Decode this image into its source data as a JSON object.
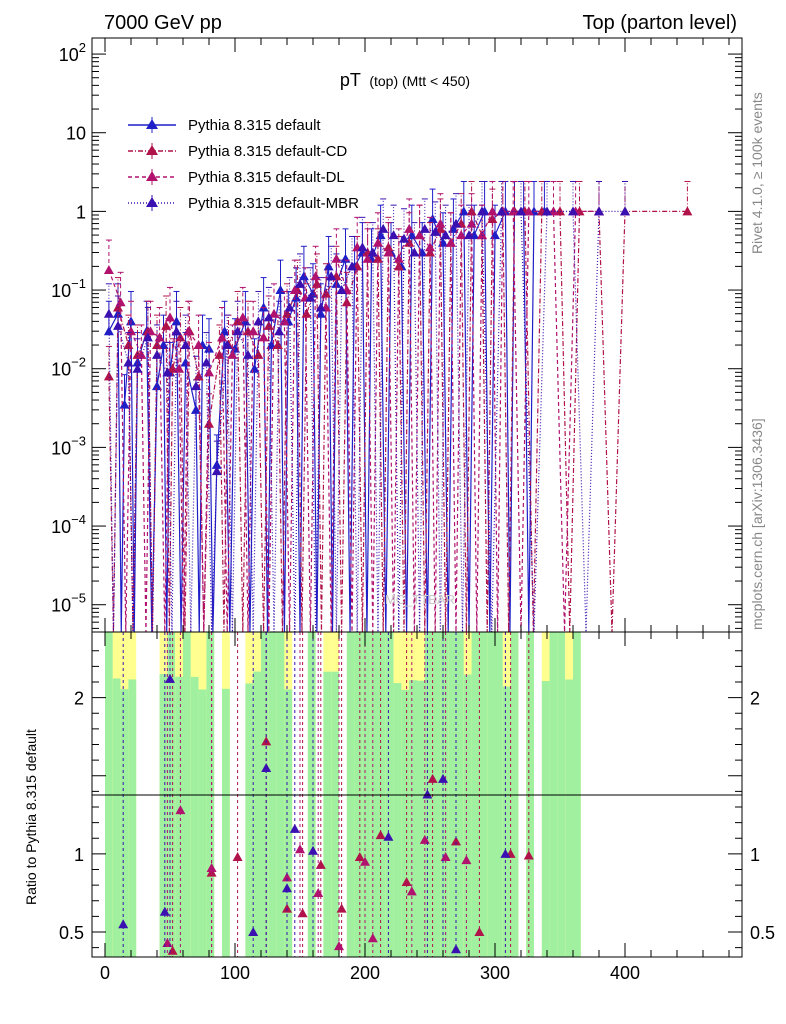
{
  "header": {
    "left": "7000 GeV pp",
    "right": "Top (parton level)"
  },
  "side_labels": {
    "rivet": "Rivet 4.1.0, ≥ 100k events",
    "mcplots": "mcplots.cern.ch [arXiv:1306.3436]"
  },
  "chart_data": {
    "type": "line",
    "title_main": "pT",
    "title_sub": "(top) (Mtt < 450)",
    "watermark": "MC_TTBAR",
    "xlabel": "",
    "ylabel_top": "",
    "ylabel_ratio": "Ratio to Pythia 8.315 default",
    "xlim": [
      -10,
      490
    ],
    "ylim_log": [
      4.5e-06,
      160
    ],
    "ylim_ratio": [
      0.34,
      2.42
    ],
    "x_ticks": [
      "0",
      "100",
      "200",
      "300",
      "400"
    ],
    "x_tick_values": [
      0,
      100,
      200,
      300,
      400
    ],
    "y_ticks_top": [
      {
        "value": 100,
        "base": "10",
        "exp": "2"
      },
      {
        "value": 10,
        "base": "10",
        "exp": ""
      },
      {
        "value": 1,
        "base": "1",
        "exp": ""
      },
      {
        "value": 0.1,
        "base": "10",
        "exp": "−1"
      },
      {
        "value": 0.01,
        "base": "10",
        "exp": "−2"
      },
      {
        "value": 0.001,
        "base": "10",
        "exp": "−3"
      },
      {
        "value": 0.0001,
        "base": "10",
        "exp": "−4"
      },
      {
        "value": 1e-05,
        "base": "10",
        "exp": "−5"
      }
    ],
    "y_ticks_ratio": [
      {
        "value": 0.5,
        "label": "0.5"
      },
      {
        "value": 1,
        "label": "1"
      },
      {
        "value": 2,
        "label": "2"
      }
    ],
    "legend": [
      {
        "name": "Pythia 8.315 default",
        "color": "#1f1fc8",
        "dash": ""
      },
      {
        "name": "Pythia 8.315 default-CD",
        "color": "#b0124a",
        "dash": "5,2,1,2"
      },
      {
        "name": "Pythia 8.315 default-DL",
        "color": "#b0126e",
        "dash": "4,3"
      },
      {
        "name": "Pythia 8.315 default-MBR",
        "color": "#3a10b0",
        "dash": "1,2"
      }
    ],
    "series": [
      {
        "name": "Pythia 8.315 default",
        "color": "#1f1fc8",
        "points": [
          [
            3,
            0.03
          ],
          [
            10,
            0.05
          ],
          [
            15,
            0.0035
          ],
          [
            20,
            0.04
          ],
          [
            25,
            0.012
          ],
          [
            32,
            0.03
          ],
          [
            40,
            0.006
          ],
          [
            45,
            0.02
          ],
          [
            50,
            0.009
          ],
          [
            55,
            0.04
          ],
          [
            62,
            0.012
          ],
          [
            70,
            0.003
          ],
          [
            75,
            0.02
          ],
          [
            80,
            0.018
          ],
          [
            86,
            0.0006
          ],
          [
            92,
            0.03
          ],
          [
            100,
            0.018
          ],
          [
            108,
            0.04
          ],
          [
            115,
            0.01
          ],
          [
            122,
            0.06
          ],
          [
            128,
            0.02
          ],
          [
            135,
            0.1
          ],
          [
            141,
            0.04
          ],
          [
            147,
            0.08
          ],
          [
            153,
            0.15
          ],
          [
            160,
            0.09
          ],
          [
            166,
            0.05
          ],
          [
            172,
            0.2
          ],
          [
            178,
            0.12
          ],
          [
            185,
            0.25
          ],
          [
            192,
            0.2
          ],
          [
            198,
            0.3
          ],
          [
            205,
            0.25
          ],
          [
            212,
            0.5
          ],
          [
            220,
            0.3
          ],
          [
            228,
            0.2
          ],
          [
            236,
            0.5
          ],
          [
            244,
            0.3
          ],
          [
            252,
            0.8
          ],
          [
            260,
            0.4
          ],
          [
            268,
            0.6
          ],
          [
            276,
            1
          ],
          [
            284,
            0.5
          ],
          [
            292,
            1
          ],
          [
            300,
            0.5
          ],
          [
            308,
            1
          ],
          [
            315,
            1
          ],
          [
            322,
            1
          ],
          [
            330,
            1
          ],
          [
            338,
            1
          ]
        ]
      },
      {
        "name": "Pythia 8.315 default-CD",
        "color": "#b0124a",
        "points": [
          [
            3,
            0.008
          ],
          [
            10,
            0.06
          ],
          [
            18,
            0.02
          ],
          [
            25,
            0.015
          ],
          [
            33,
            0.03
          ],
          [
            40,
            0.02
          ],
          [
            47,
            0.035
          ],
          [
            52,
            0.01
          ],
          [
            58,
            0.025
          ],
          [
            65,
            0.03
          ],
          [
            72,
            0.008
          ],
          [
            80,
            0.002
          ],
          [
            88,
            0.015
          ],
          [
            95,
            0.02
          ],
          [
            102,
            0.04
          ],
          [
            110,
            0.03
          ],
          [
            118,
            0.015
          ],
          [
            126,
            0.035
          ],
          [
            133,
            0.02
          ],
          [
            140,
            0.05
          ],
          [
            148,
            0.1
          ],
          [
            155,
            0.05
          ],
          [
            163,
            0.12
          ],
          [
            170,
            0.09
          ],
          [
            178,
            0.15
          ],
          [
            186,
            0.07
          ],
          [
            194,
            0.2
          ],
          [
            202,
            0.3
          ],
          [
            210,
            0.25
          ],
          [
            218,
            0.35
          ],
          [
            226,
            0.2
          ],
          [
            234,
            0.4
          ],
          [
            242,
            0.5
          ],
          [
            250,
            0.3
          ],
          [
            258,
            0.6
          ],
          [
            266,
            0.4
          ],
          [
            274,
            0.7
          ],
          [
            282,
            1
          ],
          [
            290,
            0.5
          ],
          [
            298,
            0.8
          ],
          [
            306,
            1
          ],
          [
            315,
            1
          ],
          [
            323,
            1
          ],
          [
            336,
            1
          ],
          [
            350,
            1
          ],
          [
            365,
            1
          ],
          [
            380,
            1
          ],
          [
            400,
            1
          ],
          [
            448,
            1
          ]
        ]
      },
      {
        "name": "Pythia 8.315 default-DL",
        "color": "#b0126e",
        "points": [
          [
            3,
            0.18
          ],
          [
            12,
            0.07
          ],
          [
            20,
            0.03
          ],
          [
            28,
            0.015
          ],
          [
            35,
            0.03
          ],
          [
            42,
            0.025
          ],
          [
            50,
            0.045
          ],
          [
            57,
            0.01
          ],
          [
            64,
            0.03
          ],
          [
            72,
            0.02
          ],
          [
            80,
            0.009
          ],
          [
            90,
            0.025
          ],
          [
            98,
            0.015
          ],
          [
            106,
            0.045
          ],
          [
            114,
            0.03
          ],
          [
            122,
            0.025
          ],
          [
            130,
            0.05
          ],
          [
            138,
            0.04
          ],
          [
            146,
            0.1
          ],
          [
            154,
            0.08
          ],
          [
            162,
            0.15
          ],
          [
            170,
            0.06
          ],
          [
            178,
            0.25
          ],
          [
            186,
            0.1
          ],
          [
            194,
            0.35
          ],
          [
            202,
            0.25
          ],
          [
            210,
            0.4
          ],
          [
            218,
            0.3
          ],
          [
            226,
            0.25
          ],
          [
            234,
            0.6
          ],
          [
            242,
            0.5
          ],
          [
            250,
            0.35
          ],
          [
            258,
            0.7
          ],
          [
            266,
            0.4
          ],
          [
            274,
            0.5
          ],
          [
            282,
            0.7
          ],
          [
            290,
            0.5
          ],
          [
            298,
            1
          ],
          [
            306,
            1
          ],
          [
            314,
            1
          ],
          [
            326,
            1
          ],
          [
            345,
            1
          ],
          [
            362,
            1
          ],
          [
            380,
            1
          ]
        ]
      },
      {
        "name": "Pythia 8.315 default-MBR",
        "color": "#3a10b0",
        "points": [
          [
            3,
            0.05
          ],
          [
            10,
            0.035
          ],
          [
            18,
            0.012
          ],
          [
            25,
            0.01
          ],
          [
            33,
            0.025
          ],
          [
            40,
            0.015
          ],
          [
            48,
            0.009
          ],
          [
            55,
            0.03
          ],
          [
            62,
            0.02
          ],
          [
            70,
            0.006
          ],
          [
            78,
            0.012
          ],
          [
            86,
            0.0005
          ],
          [
            94,
            0.02
          ],
          [
            102,
            0.03
          ],
          [
            110,
            0.015
          ],
          [
            118,
            0.04
          ],
          [
            126,
            0.045
          ],
          [
            134,
            0.03
          ],
          [
            142,
            0.06
          ],
          [
            150,
            0.12
          ],
          [
            158,
            0.08
          ],
          [
            166,
            0.06
          ],
          [
            174,
            0.15
          ],
          [
            182,
            0.1
          ],
          [
            190,
            0.2
          ],
          [
            198,
            0.35
          ],
          [
            206,
            0.3
          ],
          [
            214,
            0.6
          ],
          [
            222,
            0.5
          ],
          [
            230,
            0.45
          ],
          [
            238,
            0.3
          ],
          [
            246,
            0.6
          ],
          [
            254,
            0.55
          ],
          [
            262,
            0.5
          ],
          [
            270,
            0.7
          ],
          [
            280,
            0.5
          ],
          [
            290,
            1
          ],
          [
            305,
            1
          ],
          [
            320,
            1
          ],
          [
            340,
            1
          ],
          [
            360,
            1
          ],
          [
            380,
            1
          ],
          [
            400,
            1
          ]
        ]
      }
    ],
    "ratio_series": [
      {
        "name": "Pythia 8.315 default-CD",
        "color": "#b0124a",
        "points": [
          [
            52,
            0.38
          ],
          [
            82,
            0.88
          ],
          [
            102,
            0.98
          ],
          [
            124,
            1.72
          ],
          [
            140,
            0.65
          ],
          [
            152,
            0.62
          ],
          [
            166,
            0.93
          ],
          [
            182,
            0.65
          ],
          [
            196,
            0.98
          ],
          [
            212,
            1.12
          ],
          [
            232,
            0.82
          ],
          [
            252,
            1.48
          ],
          [
            270,
            1.08
          ],
          [
            288,
            0.5
          ],
          [
            312,
            1.0
          ],
          [
            326,
            0.99
          ]
        ]
      },
      {
        "name": "Pythia 8.315 default-DL",
        "color": "#b0126e",
        "points": [
          [
            48,
            0.43
          ],
          [
            58,
            1.28
          ],
          [
            82,
            0.91
          ],
          [
            140,
            0.85
          ],
          [
            150,
            1.03
          ],
          [
            164,
            0.75
          ],
          [
            180,
            0.41
          ],
          [
            200,
            0.95
          ],
          [
            206,
            0.46
          ],
          [
            236,
            0.76
          ],
          [
            246,
            1.09
          ],
          [
            262,
            0.98
          ],
          [
            278,
            0.96
          ]
        ]
      },
      {
        "name": "Pythia 8.315 default-MBR",
        "color": "#3a10b0",
        "points": [
          [
            14,
            0.55
          ],
          [
            46,
            0.63
          ],
          [
            50,
            2.12
          ],
          [
            114,
            0.5
          ],
          [
            124,
            1.55
          ],
          [
            140,
            0.78
          ],
          [
            146,
            1.16
          ],
          [
            160,
            1.02
          ],
          [
            218,
            1.11
          ],
          [
            248,
            1.38
          ],
          [
            260,
            1.48
          ],
          [
            270,
            0.39
          ],
          [
            308,
            1.0
          ]
        ]
      }
    ],
    "ratio_band": {
      "note": "uncertainty bands around ratio = 1",
      "green_color": "#a0f0a0",
      "yellow_color": "#ffff90"
    }
  }
}
